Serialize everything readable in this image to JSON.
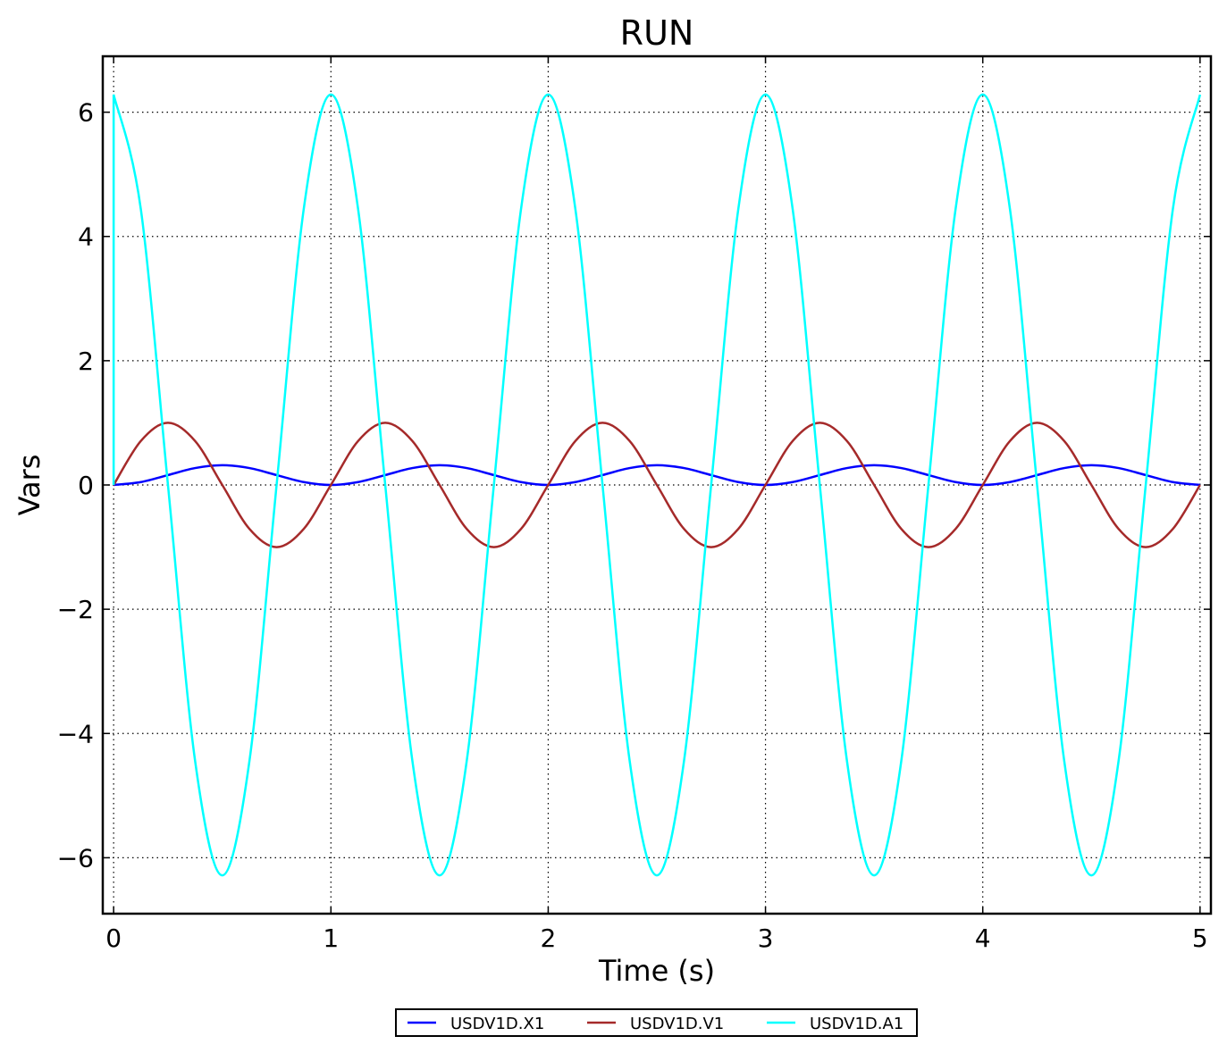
{
  "chart_data": {
    "type": "line",
    "title": "RUN",
    "xlabel": "Time (s)",
    "ylabel": "Vars",
    "xlim": [
      -0.05,
      5.05
    ],
    "ylim": [
      -6.9,
      6.9
    ],
    "xticks": [
      0,
      1,
      2,
      3,
      4,
      5
    ],
    "xtick_labels": [
      "0",
      "1",
      "2",
      "3",
      "4",
      "5"
    ],
    "yticks": [
      6,
      4,
      2,
      0,
      -2,
      -4,
      -6
    ],
    "ytick_labels": [
      "6",
      "4",
      "2",
      "0",
      "−2",
      "−4",
      "−6"
    ],
    "grid": true,
    "legend_position": "bottom-center, below axes",
    "x": [
      0,
      0.125,
      0.25,
      0.375,
      0.5,
      0.625,
      0.75,
      0.875,
      1,
      1.125,
      1.25,
      1.375,
      1.5,
      1.625,
      1.75,
      1.875,
      2,
      2.125,
      2.25,
      2.375,
      2.5,
      2.625,
      2.75,
      2.875,
      3,
      3.125,
      3.25,
      3.375,
      3.5,
      3.625,
      3.75,
      3.875,
      4,
      4.125,
      4.25,
      4.375,
      4.5,
      4.625,
      4.75,
      4.875,
      5
    ],
    "series": [
      {
        "name": "USDV1D.X1",
        "color": "#0000ff",
        "values": [
          0,
          0.047,
          0.159,
          0.272,
          0.318,
          0.272,
          0.159,
          0.047,
          0,
          0.047,
          0.159,
          0.272,
          0.318,
          0.272,
          0.159,
          0.047,
          0,
          0.047,
          0.159,
          0.272,
          0.318,
          0.272,
          0.159,
          0.047,
          0,
          0.047,
          0.159,
          0.272,
          0.318,
          0.272,
          0.159,
          0.047,
          0,
          0.047,
          0.159,
          0.272,
          0.318,
          0.272,
          0.159,
          0.047,
          0
        ]
      },
      {
        "name": "USDV1D.V1",
        "color": "#a52a2a",
        "values": [
          0,
          0.707,
          1,
          0.707,
          0,
          -0.707,
          -1,
          -0.707,
          0,
          0.707,
          1,
          0.707,
          0,
          -0.707,
          -1,
          -0.707,
          0,
          0.707,
          1,
          0.707,
          0,
          -0.707,
          -1,
          -0.707,
          0,
          0.707,
          1,
          0.707,
          0,
          -0.707,
          -1,
          -0.707,
          0,
          0.707,
          1,
          0.707,
          0,
          -0.707,
          -1,
          -0.707,
          0
        ]
      },
      {
        "name": "USDV1D.A1",
        "color": "#00ffff",
        "values": [
          0,
          4.443,
          0,
          -4.443,
          -6.283,
          -4.443,
          0,
          4.443,
          6.283,
          4.443,
          0,
          -4.443,
          -6.283,
          -4.443,
          0,
          4.443,
          6.283,
          4.443,
          0,
          -4.443,
          -6.283,
          -4.443,
          0,
          4.443,
          6.283,
          4.443,
          0,
          -4.443,
          -6.283,
          -4.443,
          0,
          4.443,
          6.283,
          4.443,
          0,
          -4.443,
          -6.283,
          -4.443,
          0,
          4.443,
          6.283
        ],
        "note_initial": "jumps from 0 to 6.283 at t≈0"
      }
    ]
  }
}
